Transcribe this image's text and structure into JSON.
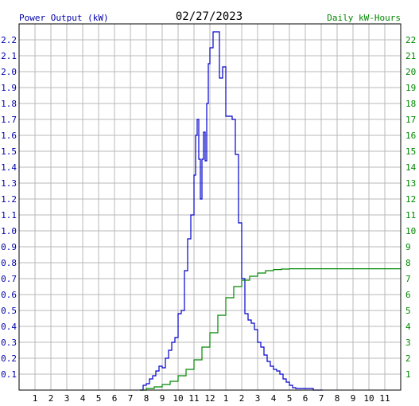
{
  "chart_data": {
    "type": "line",
    "title": "02/27/2023",
    "left_axis_label": "Power Output (kW)",
    "right_axis_label": "Daily kW-Hours",
    "x_ticks": [
      "1",
      "2",
      "3",
      "4",
      "5",
      "6",
      "7",
      "8",
      "9",
      "10",
      "11",
      "12",
      "1",
      "2",
      "3",
      "4",
      "5",
      "6",
      "7",
      "8",
      "9",
      "10",
      "11"
    ],
    "x_range_hours": [
      0,
      24
    ],
    "left_ylim": [
      0,
      2.3
    ],
    "left_ticks": [
      "0.1",
      "0.2",
      "0.3",
      "0.4",
      "0.5",
      "0.6",
      "0.7",
      "0.8",
      "0.9",
      "1.0",
      "1.1",
      "1.2",
      "1.3",
      "1.4",
      "1.5",
      "1.6",
      "1.7",
      "1.8",
      "1.9",
      "2.0",
      "2.1",
      "2.2"
    ],
    "right_ylim": [
      0,
      23
    ],
    "right_ticks": [
      "1",
      "2",
      "3",
      "4",
      "5",
      "6",
      "7",
      "8",
      "9",
      "10",
      "11",
      "12",
      "13",
      "14",
      "15",
      "16",
      "17",
      "18",
      "19",
      "20",
      "21",
      "22"
    ],
    "grid": true,
    "colors": {
      "power": "#0000cc",
      "energy": "#008800",
      "grid": "#b8b8b8",
      "axis": "#000000",
      "left_label": "#0000aa",
      "right_label": "#008800"
    },
    "series": [
      {
        "axis": "left",
        "x": [
          7.6,
          7.8,
          8.0,
          8.2,
          8.4,
          8.6,
          8.8,
          9.0,
          9.2,
          9.4,
          9.6,
          9.8,
          10.0,
          10.2,
          10.4,
          10.6,
          10.8,
          11.0,
          11.1,
          11.2,
          11.3,
          11.4,
          11.5,
          11.6,
          11.7,
          11.8,
          11.9,
          12.0,
          12.2,
          12.4,
          12.6,
          12.8,
          13.0,
          13.2,
          13.4,
          13.6,
          13.8,
          14.0,
          14.2,
          14.4,
          14.6,
          14.8,
          15.0,
          15.2,
          15.4,
          15.6,
          15.8,
          16.0,
          16.2,
          16.4,
          16.6,
          16.8,
          17.0,
          17.2,
          17.4,
          17.6,
          17.8,
          18.0,
          18.5,
          19.0,
          19.1
        ],
        "y": [
          0.0,
          0.03,
          0.04,
          0.07,
          0.09,
          0.12,
          0.15,
          0.14,
          0.2,
          0.25,
          0.3,
          0.33,
          0.48,
          0.5,
          0.75,
          0.95,
          1.1,
          1.35,
          1.6,
          1.7,
          1.45,
          1.2,
          1.45,
          1.62,
          1.44,
          1.8,
          2.05,
          2.15,
          2.25,
          2.25,
          1.96,
          2.03,
          1.72,
          1.72,
          1.7,
          1.48,
          1.05,
          0.7,
          0.48,
          0.44,
          0.42,
          0.38,
          0.3,
          0.27,
          0.22,
          0.18,
          0.15,
          0.13,
          0.12,
          0.1,
          0.07,
          0.05,
          0.03,
          0.015,
          0.01,
          0.01,
          0.01,
          0.01,
          0.0,
          0.0,
          0.0
        ]
      },
      {
        "axis": "right",
        "x": [
          7.6,
          8.0,
          8.5,
          9.0,
          9.5,
          10.0,
          10.5,
          11.0,
          11.5,
          12.0,
          12.5,
          13.0,
          13.5,
          14.0,
          14.5,
          15.0,
          15.5,
          16.0,
          16.5,
          17.0,
          18.0,
          20.0,
          22.0,
          24.0
        ],
        "y": [
          0.0,
          0.1,
          0.2,
          0.35,
          0.55,
          0.9,
          1.3,
          1.9,
          2.7,
          3.6,
          4.7,
          5.8,
          6.5,
          6.9,
          7.15,
          7.35,
          7.5,
          7.57,
          7.6,
          7.62,
          7.62,
          7.62,
          7.62,
          7.62
        ]
      }
    ]
  }
}
